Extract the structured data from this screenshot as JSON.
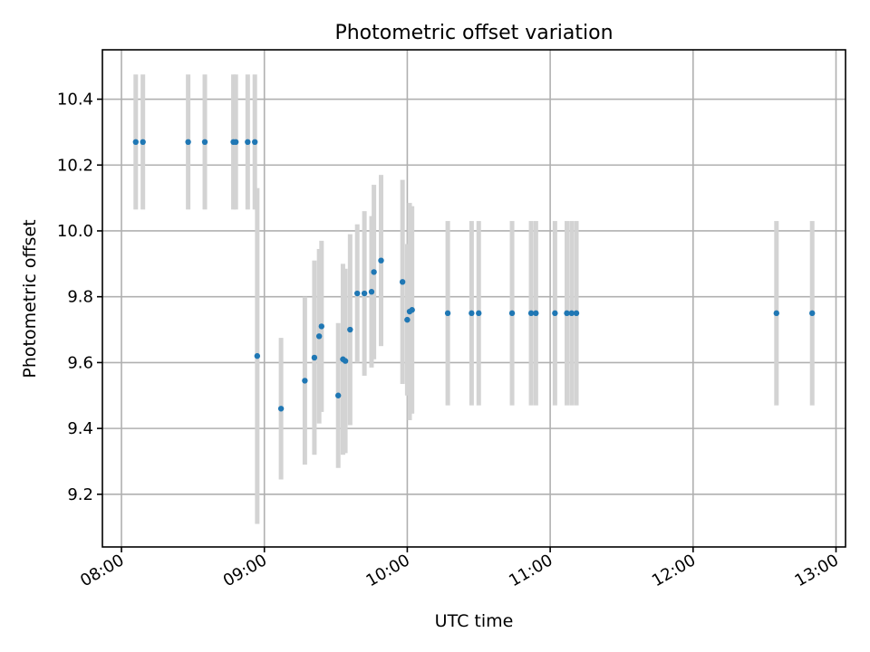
{
  "chart_data": {
    "type": "scatter",
    "title": "Photometric offset variation",
    "xlabel": "UTC time",
    "ylabel": "Photometric offset",
    "grid": true,
    "colors": {
      "points": "#1f77b4",
      "errorbars": "#d3d3d3"
    },
    "xlim": [
      "07:52",
      "13:04"
    ],
    "ylim": [
      9.04,
      10.55
    ],
    "xticks": [
      "08:00",
      "09:00",
      "10:00",
      "11:00",
      "12:00",
      "13:00"
    ],
    "yticks": [
      "9.2",
      "9.4",
      "9.6",
      "9.8",
      "10.0",
      "10.2",
      "10.4"
    ],
    "points": [
      {
        "x": "08:06",
        "y": 10.27,
        "err": 0.205
      },
      {
        "x": "08:09",
        "y": 10.27,
        "err": 0.205
      },
      {
        "x": "08:28",
        "y": 10.27,
        "err": 0.205
      },
      {
        "x": "08:35",
        "y": 10.27,
        "err": 0.205
      },
      {
        "x": "08:47",
        "y": 10.27,
        "err": 0.205
      },
      {
        "x": "08:48",
        "y": 10.27,
        "err": 0.205
      },
      {
        "x": "08:53",
        "y": 10.27,
        "err": 0.205
      },
      {
        "x": "08:56",
        "y": 10.27,
        "err": 0.205
      },
      {
        "x": "08:57",
        "y": 9.62,
        "err": 0.51
      },
      {
        "x": "09:07",
        "y": 9.46,
        "err": 0.215
      },
      {
        "x": "09:17",
        "y": 9.545,
        "err": 0.255
      },
      {
        "x": "09:21",
        "y": 9.615,
        "err": 0.295
      },
      {
        "x": "09:23",
        "y": 9.68,
        "err": 0.265
      },
      {
        "x": "09:24",
        "y": 9.71,
        "err": 0.26
      },
      {
        "x": "09:31",
        "y": 9.5,
        "err": 0.22
      },
      {
        "x": "09:33",
        "y": 9.61,
        "err": 0.29
      },
      {
        "x": "09:34",
        "y": 9.605,
        "err": 0.28
      },
      {
        "x": "09:36",
        "y": 9.7,
        "err": 0.29
      },
      {
        "x": "09:39",
        "y": 9.81,
        "err": 0.21
      },
      {
        "x": "09:42",
        "y": 9.81,
        "err": 0.25
      },
      {
        "x": "09:45",
        "y": 9.815,
        "err": 0.23
      },
      {
        "x": "09:46",
        "y": 9.875,
        "err": 0.265
      },
      {
        "x": "09:49",
        "y": 9.91,
        "err": 0.26
      },
      {
        "x": "09:58",
        "y": 9.845,
        "err": 0.31
      },
      {
        "x": "10:00",
        "y": 9.73,
        "err": 0.23
      },
      {
        "x": "10:01",
        "y": 9.755,
        "err": 0.33
      },
      {
        "x": "10:02",
        "y": 9.76,
        "err": 0.315
      },
      {
        "x": "10:17",
        "y": 9.75,
        "err": 0.28
      },
      {
        "x": "10:27",
        "y": 9.75,
        "err": 0.28
      },
      {
        "x": "10:30",
        "y": 9.75,
        "err": 0.28
      },
      {
        "x": "10:44",
        "y": 9.75,
        "err": 0.28
      },
      {
        "x": "10:52",
        "y": 9.75,
        "err": 0.28
      },
      {
        "x": "10:54",
        "y": 9.75,
        "err": 0.28
      },
      {
        "x": "11:02",
        "y": 9.75,
        "err": 0.28
      },
      {
        "x": "11:07",
        "y": 9.75,
        "err": 0.28
      },
      {
        "x": "11:09",
        "y": 9.75,
        "err": 0.28
      },
      {
        "x": "11:11",
        "y": 9.75,
        "err": 0.28
      },
      {
        "x": "12:35",
        "y": 9.75,
        "err": 0.28
      },
      {
        "x": "12:50",
        "y": 9.75,
        "err": 0.28
      }
    ]
  }
}
